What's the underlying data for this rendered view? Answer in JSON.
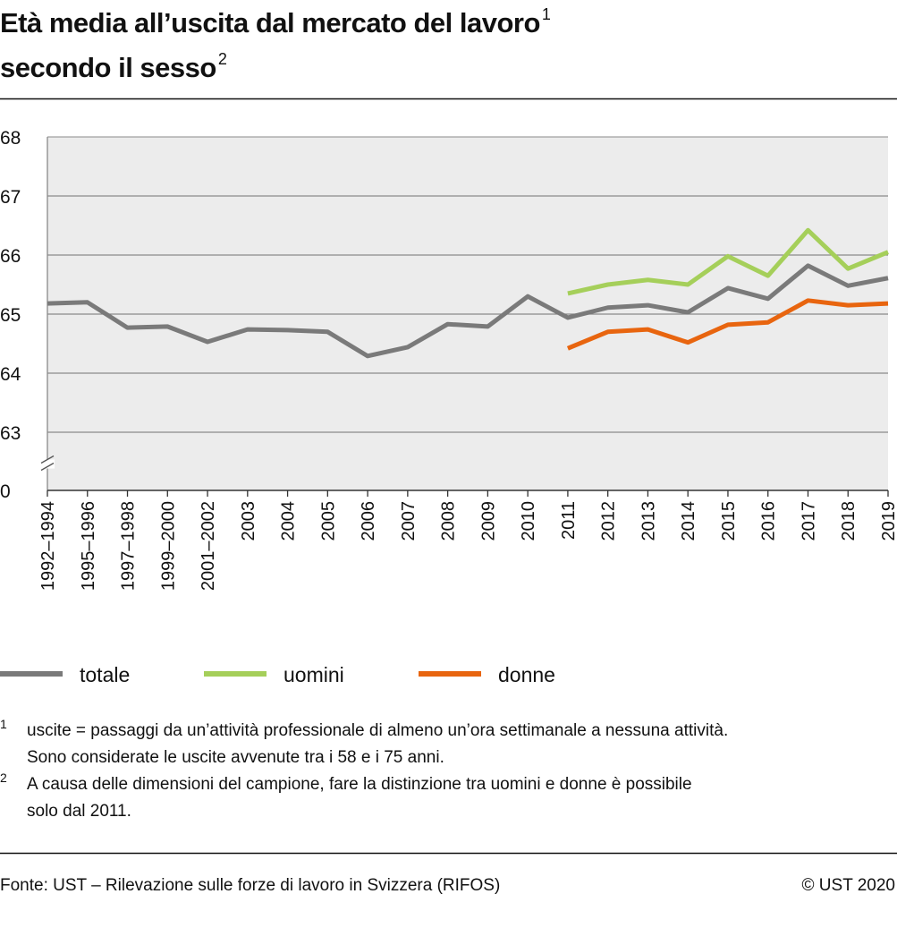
{
  "chart_data": {
    "type": "line",
    "title": [
      "Età media all’uscita dal mercato del lavoro",
      "secondo il sesso"
    ],
    "title_notes": [
      "1",
      "2"
    ],
    "categories": [
      "1992–1994",
      "1995–1996",
      "1997–1998",
      "1999–2000",
      "2001–2002",
      "2003",
      "2004",
      "2005",
      "2006",
      "2007",
      "2008",
      "2009",
      "2010",
      "2011",
      "2012",
      "2013",
      "2014",
      "2015",
      "2016",
      "2017",
      "2018",
      "2019"
    ],
    "series": [
      {
        "name": "totale",
        "color": "#7a7a7a",
        "values": [
          65.18,
          65.2,
          64.77,
          64.79,
          64.53,
          64.74,
          64.73,
          64.7,
          64.29,
          64.44,
          64.83,
          64.79,
          65.3,
          64.94,
          65.11,
          65.15,
          65.03,
          65.44,
          65.26,
          65.82,
          65.48,
          65.61
        ]
      },
      {
        "name": "uomini",
        "color": "#a5cf5a",
        "values": [
          null,
          null,
          null,
          null,
          null,
          null,
          null,
          null,
          null,
          null,
          null,
          null,
          null,
          65.35,
          65.5,
          65.58,
          65.5,
          65.98,
          65.65,
          66.42,
          65.77,
          66.05
        ]
      },
      {
        "name": "donne",
        "color": "#e8650f",
        "values": [
          null,
          null,
          null,
          null,
          null,
          null,
          null,
          null,
          null,
          null,
          null,
          null,
          null,
          64.42,
          64.7,
          64.74,
          64.52,
          64.82,
          64.86,
          65.23,
          65.15,
          65.18
        ]
      }
    ],
    "ylim": [
      0,
      68
    ],
    "yticks": [
      0,
      63,
      64,
      65,
      66,
      67,
      68
    ],
    "axis_break": [
      0,
      63
    ],
    "grid": true,
    "footnotes": [
      {
        "marker": "1",
        "lines": [
          "uscite = passaggi da un’attività professionale di almeno un’ora settimanale a nessuna attività.",
          "Sono considerate le uscite avvenute tra i 58 e i 75 anni."
        ]
      },
      {
        "marker": "2",
        "lines": [
          "A causa delle dimensioni del campione, fare la distinzione tra uomini e donne è possibile",
          "solo dal 2011."
        ]
      }
    ],
    "source": "Fonte: UST – Rilevazione sulle forze di lavoro in Svizzera (RIFOS)",
    "copyright": "© UST 2020"
  }
}
